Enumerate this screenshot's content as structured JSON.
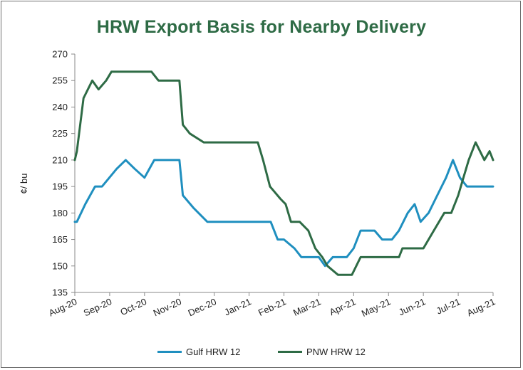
{
  "chart_data": {
    "type": "line",
    "title": "HRW Export Basis for Nearby Delivery",
    "ylabel": "¢/ bu",
    "xlabel": "",
    "ylim": [
      135,
      270
    ],
    "yticks": [
      135,
      150,
      165,
      180,
      195,
      210,
      225,
      240,
      255,
      270
    ],
    "grid": false,
    "legend_position": "bottom",
    "x_tick_labels": [
      "Aug-20",
      "Sep-20",
      "Oct-20",
      "Nov-20",
      "Dec-20",
      "Jan-21",
      "Feb-21",
      "Mar-21",
      "Apr-21",
      "May-21",
      "Jun-21",
      "Jul-21",
      "Aug-21"
    ],
    "series": [
      {
        "name": "Gulf HRW 12",
        "color": "#1f8fbf",
        "points": [
          [
            0.0,
            175
          ],
          [
            0.06,
            175
          ],
          [
            0.3,
            185
          ],
          [
            0.58,
            195
          ],
          [
            0.78,
            195
          ],
          [
            1.2,
            205
          ],
          [
            1.46,
            210
          ],
          [
            1.72,
            205
          ],
          [
            2.0,
            200
          ],
          [
            2.28,
            210
          ],
          [
            2.7,
            210
          ],
          [
            3.0,
            210
          ],
          [
            3.1,
            190
          ],
          [
            3.4,
            183
          ],
          [
            3.8,
            175
          ],
          [
            4.3,
            175
          ],
          [
            5.0,
            175
          ],
          [
            5.5,
            175
          ],
          [
            5.62,
            175
          ],
          [
            5.82,
            165
          ],
          [
            6.0,
            165
          ],
          [
            6.3,
            160
          ],
          [
            6.5,
            155
          ],
          [
            6.8,
            155
          ],
          [
            7.0,
            155
          ],
          [
            7.18,
            150
          ],
          [
            7.4,
            155
          ],
          [
            7.8,
            155
          ],
          [
            8.0,
            160
          ],
          [
            8.2,
            170
          ],
          [
            8.6,
            170
          ],
          [
            8.82,
            165
          ],
          [
            9.1,
            165
          ],
          [
            9.3,
            170
          ],
          [
            9.55,
            180
          ],
          [
            9.75,
            185
          ],
          [
            9.92,
            175
          ],
          [
            10.15,
            180
          ],
          [
            10.4,
            190
          ],
          [
            10.65,
            200
          ],
          [
            10.85,
            210
          ],
          [
            11.05,
            200
          ],
          [
            11.25,
            195
          ],
          [
            11.6,
            195
          ],
          [
            12.0,
            195
          ]
        ]
      },
      {
        "name": "PNW HRW 12",
        "color": "#2e6b45",
        "points": [
          [
            0.0,
            210
          ],
          [
            0.06,
            215
          ],
          [
            0.25,
            245
          ],
          [
            0.5,
            255
          ],
          [
            0.68,
            250
          ],
          [
            0.9,
            255
          ],
          [
            1.05,
            260
          ],
          [
            1.6,
            260
          ],
          [
            2.2,
            260
          ],
          [
            2.4,
            255
          ],
          [
            2.9,
            255
          ],
          [
            3.0,
            255
          ],
          [
            3.1,
            230
          ],
          [
            3.3,
            225
          ],
          [
            3.7,
            220
          ],
          [
            4.3,
            220
          ],
          [
            5.0,
            220
          ],
          [
            5.25,
            220
          ],
          [
            5.4,
            210
          ],
          [
            5.6,
            195
          ],
          [
            5.9,
            188
          ],
          [
            6.05,
            185
          ],
          [
            6.2,
            175
          ],
          [
            6.45,
            175
          ],
          [
            6.7,
            170
          ],
          [
            6.9,
            160
          ],
          [
            7.1,
            155
          ],
          [
            7.25,
            150
          ],
          [
            7.55,
            145
          ],
          [
            7.95,
            145
          ],
          [
            8.2,
            155
          ],
          [
            8.6,
            155
          ],
          [
            9.0,
            155
          ],
          [
            9.3,
            155
          ],
          [
            9.4,
            160
          ],
          [
            9.8,
            160
          ],
          [
            10.0,
            160
          ],
          [
            10.3,
            170
          ],
          [
            10.6,
            180
          ],
          [
            10.8,
            180
          ],
          [
            11.0,
            190
          ],
          [
            11.15,
            200
          ],
          [
            11.3,
            210
          ],
          [
            11.5,
            220
          ],
          [
            11.75,
            210
          ],
          [
            11.9,
            215
          ],
          [
            12.0,
            210
          ]
        ]
      }
    ]
  }
}
